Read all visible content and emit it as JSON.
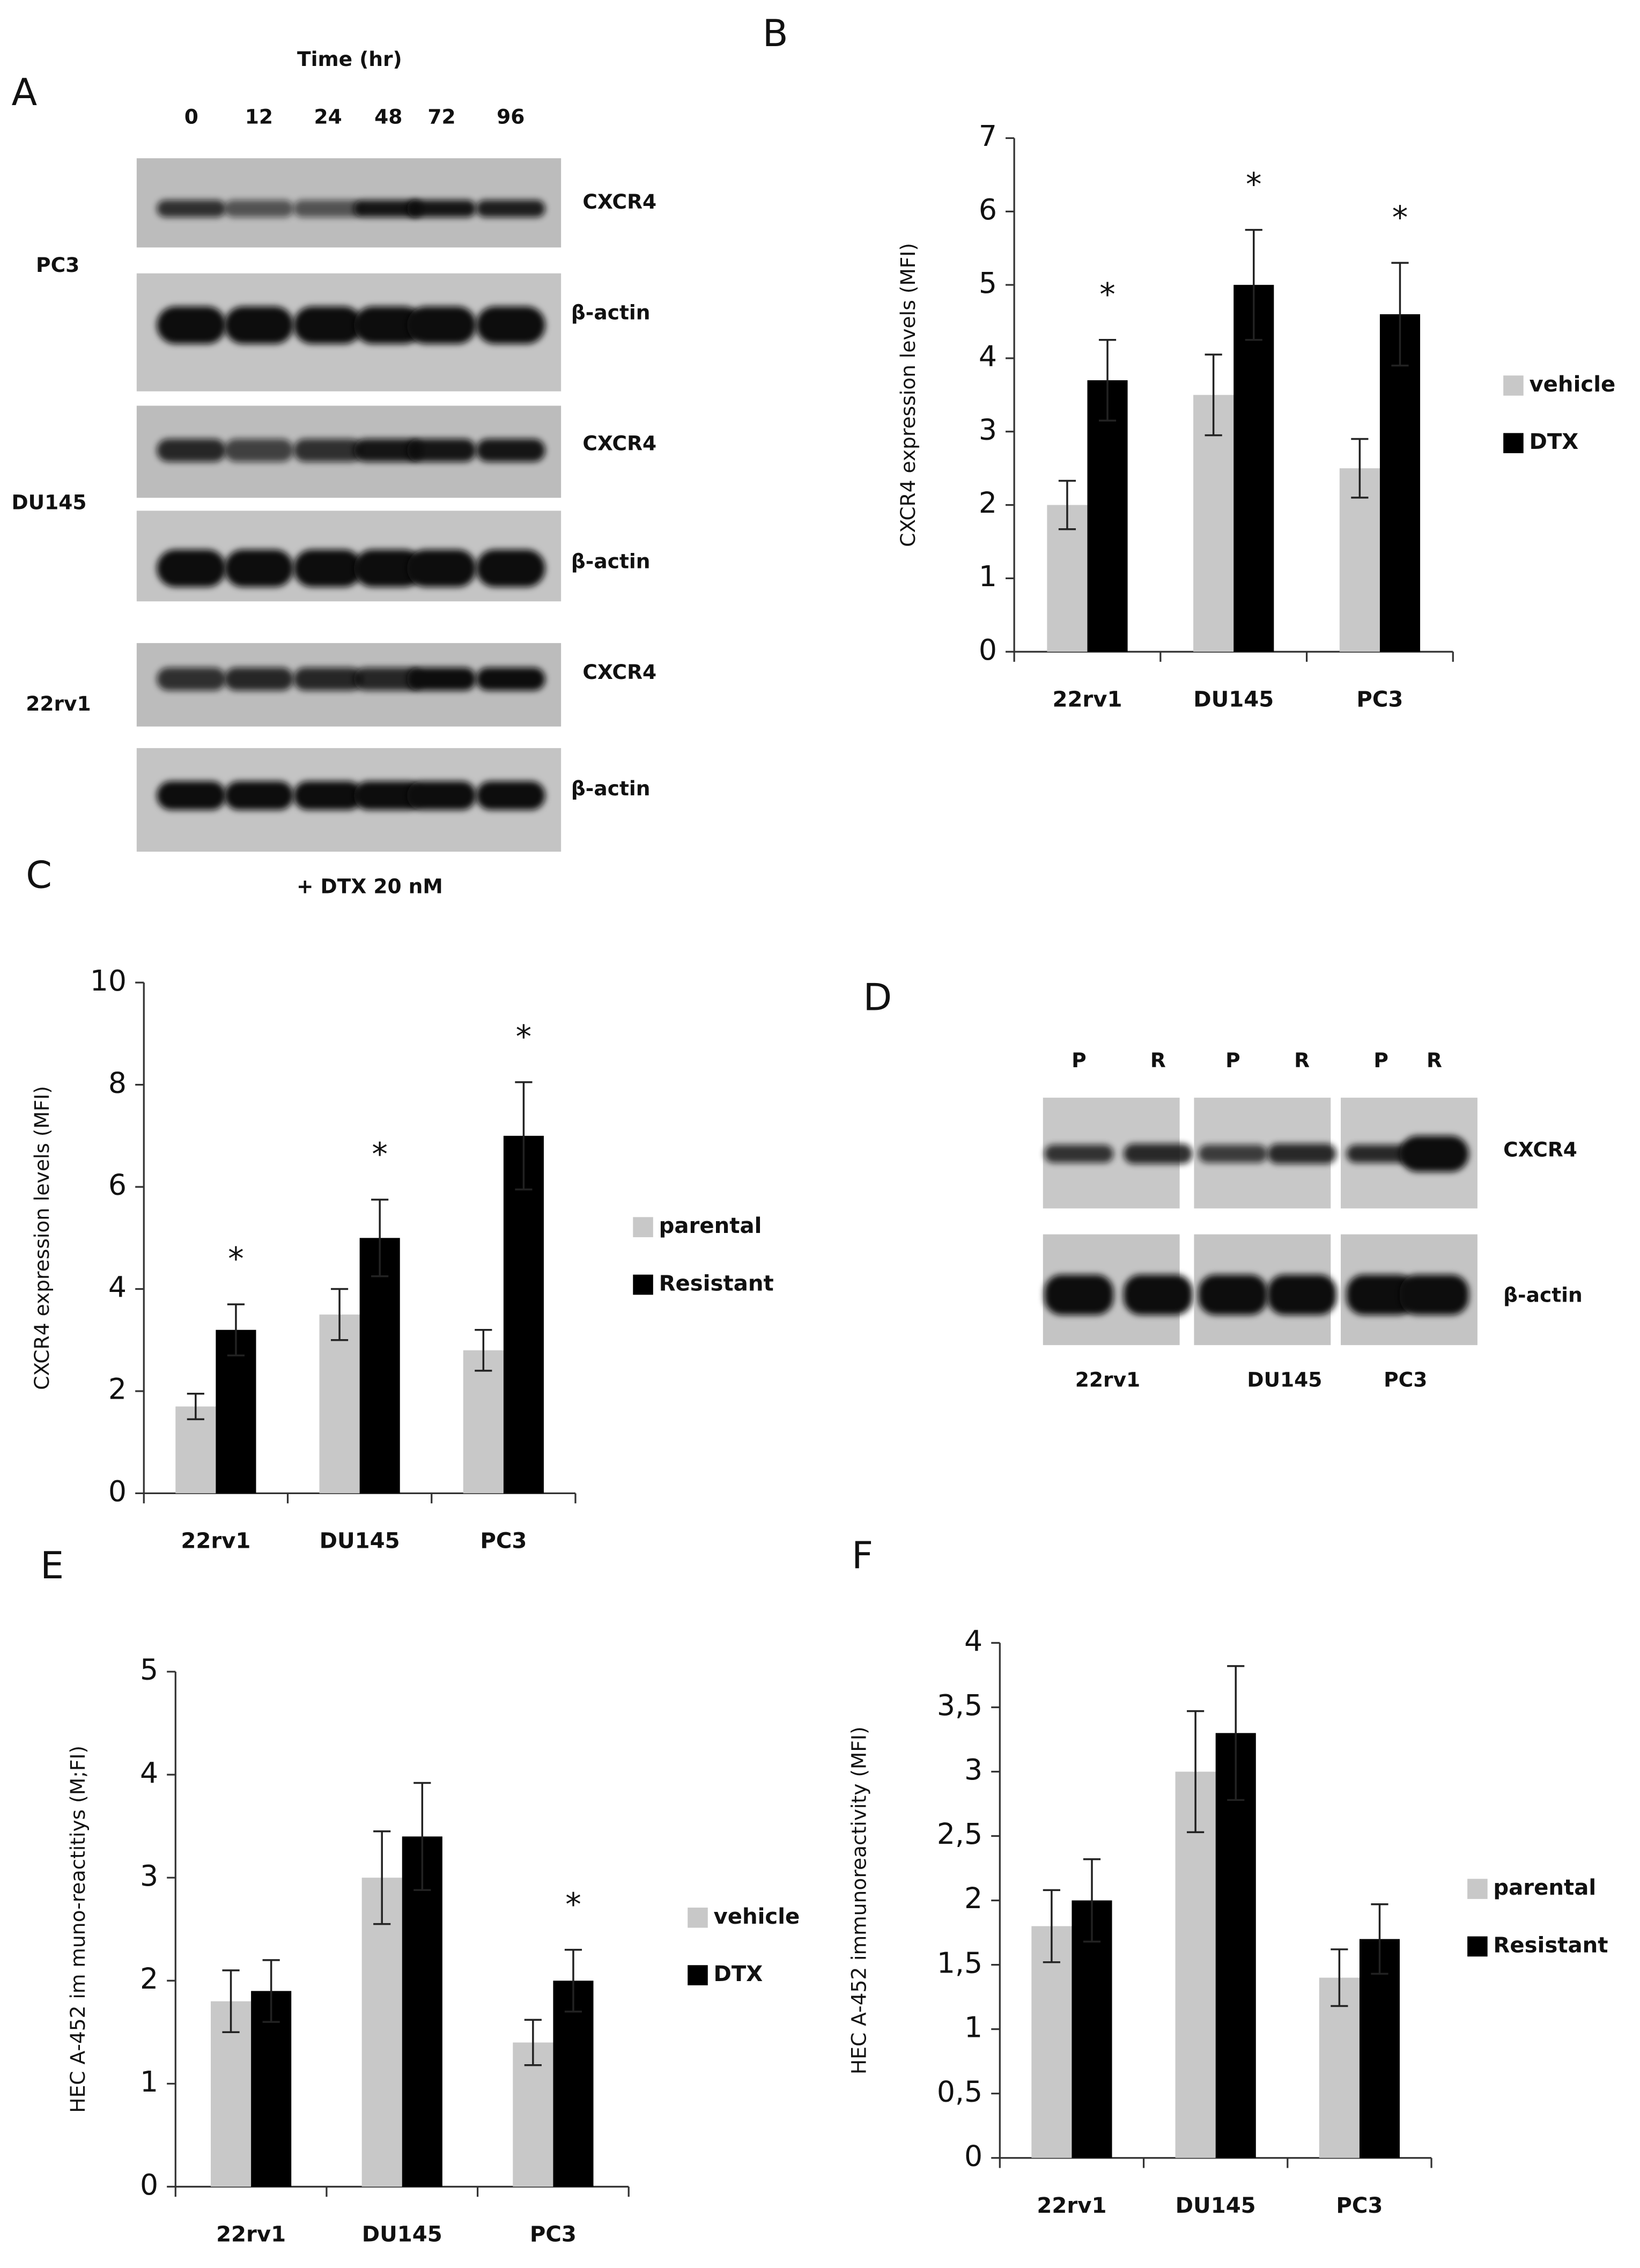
{
  "panel_a": {
    "label": "A",
    "title": "Time (hr)",
    "lanes": [
      "0",
      "12",
      "24",
      "48",
      "72",
      "96"
    ],
    "rows": [
      {
        "cell_line": "PC3",
        "bands": [
          "CXCR4",
          "β-actin"
        ]
      },
      {
        "cell_line": "DU145",
        "bands": [
          "CXCR4",
          "β-actin"
        ]
      },
      {
        "cell_line": "22rv1",
        "bands": [
          "CXCR4",
          "β-actin"
        ]
      }
    ],
    "treatment": "+ DTX 20 nM"
  },
  "panel_d": {
    "label": "D",
    "lanes": [
      "P",
      "R",
      "P",
      "R",
      "P",
      "R"
    ],
    "cell_lines": [
      "22rv1",
      "DU145",
      "PC3"
    ],
    "bands": [
      "CXCR4",
      "β-actin"
    ]
  },
  "chart_data": [
    {
      "type": "bar",
      "panel": "B",
      "y_label": "CXCR4 expression levels (MFI)",
      "categories": [
        "22rv1",
        "DU145",
        "PC3"
      ],
      "series": [
        {
          "name": "vehicle",
          "color": "#c8c8c8",
          "values": [
            2.0,
            3.5,
            2.5
          ],
          "errors": [
            0.33,
            0.55,
            0.4
          ]
        },
        {
          "name": "DTX",
          "color": "#000000",
          "values": [
            3.7,
            5.0,
            4.6
          ],
          "errors": [
            0.55,
            0.75,
            0.7
          ],
          "markers": [
            "*",
            "*",
            "*"
          ]
        }
      ],
      "ylim": [
        0,
        7
      ],
      "yticks": [
        0,
        1,
        2,
        3,
        4,
        5,
        6,
        7
      ]
    },
    {
      "type": "bar",
      "panel": "C",
      "y_label": "CXCR4 expression levels (MFI)",
      "categories": [
        "22rv1",
        "DU145",
        "PC3"
      ],
      "series": [
        {
          "name": "parental",
          "color": "#c8c8c8",
          "values": [
            1.7,
            3.5,
            2.8
          ],
          "errors": [
            0.25,
            0.5,
            0.4
          ]
        },
        {
          "name": "Resistant",
          "color": "#000000",
          "values": [
            3.2,
            5.0,
            7.0
          ],
          "errors": [
            0.5,
            0.75,
            1.05
          ],
          "markers": [
            "*",
            "*",
            "*"
          ]
        }
      ],
      "ylim": [
        0,
        10
      ],
      "yticks": [
        0,
        2,
        4,
        6,
        8,
        10
      ]
    },
    {
      "type": "bar",
      "panel": "E",
      "y_label": "HEC A-452 im muno-reactitiys (M;FI)",
      "categories": [
        "22rv1",
        "DU145",
        "PC3"
      ],
      "series": [
        {
          "name": "vehicle",
          "color": "#c8c8c8",
          "values": [
            1.8,
            3.0,
            1.4
          ],
          "errors": [
            0.3,
            0.45,
            0.22
          ]
        },
        {
          "name": "DTX",
          "color": "#000000",
          "values": [
            1.9,
            3.4,
            2.0
          ],
          "errors": [
            0.3,
            0.52,
            0.3
          ],
          "markers": [
            null,
            null,
            "*"
          ]
        }
      ],
      "ylim": [
        0,
        5
      ],
      "yticks": [
        0,
        1,
        2,
        3,
        4,
        5
      ]
    },
    {
      "type": "bar",
      "panel": "F",
      "y_label": "HEC A-452 immunoreactivity (MFI)",
      "categories": [
        "22rv1",
        "DU145",
        "PC3"
      ],
      "series": [
        {
          "name": "parental",
          "color": "#c8c8c8",
          "values": [
            1.8,
            3.0,
            1.4
          ],
          "errors": [
            0.28,
            0.47,
            0.22
          ]
        },
        {
          "name": "Resistant",
          "color": "#000000",
          "values": [
            2.0,
            3.3,
            1.7
          ],
          "errors": [
            0.32,
            0.52,
            0.27
          ]
        }
      ],
      "ylim": [
        0,
        4
      ],
      "yticks": [
        0,
        {
          "value": 0.5,
          "label": "0,5"
        },
        1,
        {
          "value": 1.5,
          "label": "1,5"
        },
        2,
        {
          "value": 2.5,
          "label": "2,5"
        },
        3,
        {
          "value": 3.5,
          "label": "3,5"
        },
        4
      ]
    }
  ]
}
